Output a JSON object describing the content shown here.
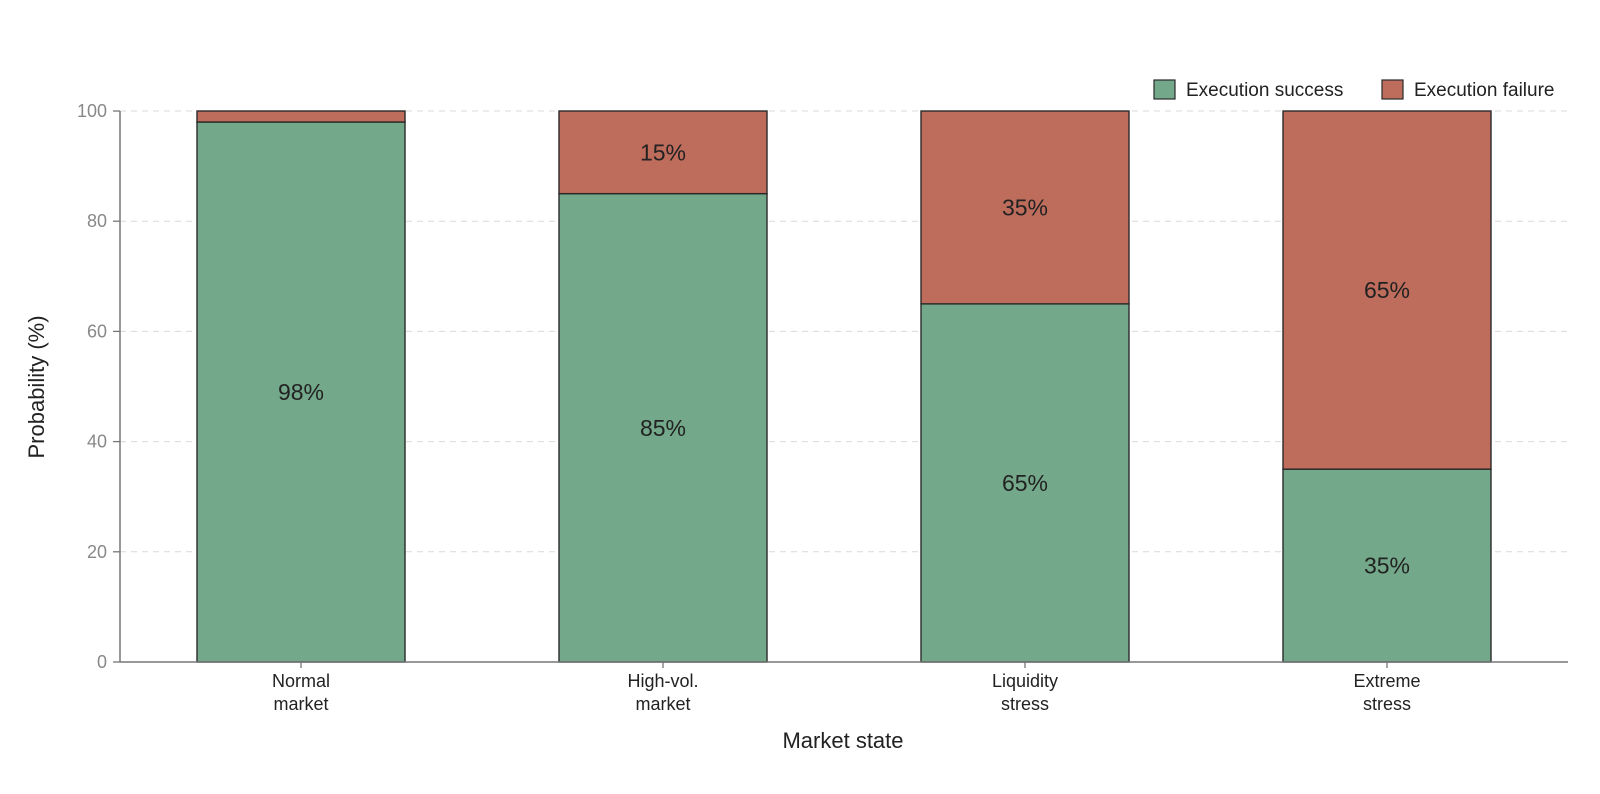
{
  "chart_data": {
    "type": "bar",
    "stacked": true,
    "categories": [
      [
        "Normal",
        "market"
      ],
      [
        "High-vol.",
        "market"
      ],
      [
        "Liquidity",
        "stress"
      ],
      [
        "Extreme",
        "stress"
      ]
    ],
    "series": [
      {
        "name": "Execution success",
        "values": [
          98,
          85,
          65,
          35
        ],
        "labels": [
          "98%",
          "85%",
          "65%",
          "35%"
        ],
        "color": "#73a98a"
      },
      {
        "name": "Execution failure",
        "values": [
          2,
          15,
          35,
          65
        ],
        "labels": [
          "",
          "15%",
          "35%",
          "65%"
        ],
        "color": "#be6c5b"
      }
    ],
    "title": "",
    "xlabel": "Market state",
    "ylabel": "Probability (%)",
    "ylim": [
      0,
      100
    ],
    "yticks": [
      0,
      20,
      40,
      60,
      80,
      100
    ],
    "grid": true,
    "legend_position": "top-right"
  }
}
